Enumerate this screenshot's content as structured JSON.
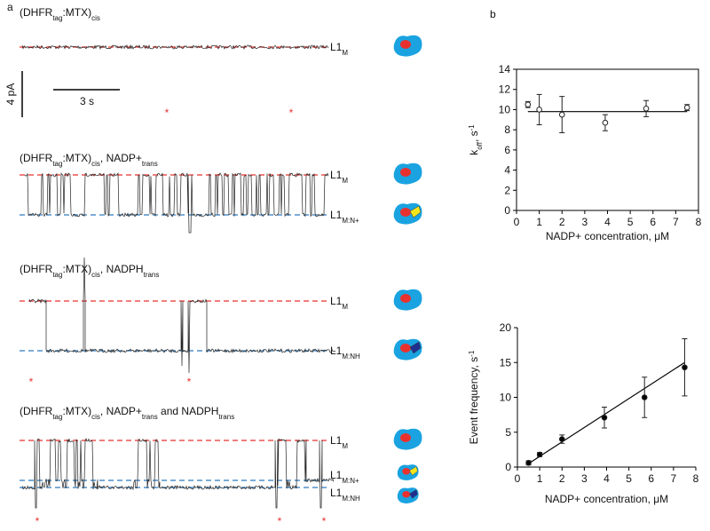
{
  "panel_a": {
    "label": "a",
    "scale_bar": {
      "current": "4 pA",
      "time": "3 s"
    },
    "event_marker": "*",
    "traces": [
      {
        "title": [
          {
            "text": "(DHFR"
          },
          {
            "text": "tag",
            "sub": true
          },
          {
            "text": ":MTX)"
          },
          {
            "text": "cis",
            "sub": true
          }
        ],
        "levels": [
          {
            "name": "L1",
            "sub": "M",
            "color": "#e8312f"
          }
        ]
      },
      {
        "title": [
          {
            "text": "(DHFR"
          },
          {
            "text": "tag",
            "sub": true
          },
          {
            "text": ":MTX)"
          },
          {
            "text": "cis",
            "sub": true
          },
          {
            "text": ", NADP+"
          },
          {
            "text": "trans",
            "sub": true
          }
        ],
        "levels": [
          {
            "name": "L1",
            "sub": "M",
            "color": "#e8312f"
          },
          {
            "name": "L1",
            "sub": "M:N+",
            "color": "#2e7bbf"
          }
        ]
      },
      {
        "title": [
          {
            "text": "(DHFR"
          },
          {
            "text": "tag",
            "sub": true
          },
          {
            "text": ":MTX)"
          },
          {
            "text": "cis",
            "sub": true
          },
          {
            "text": ", NADPH"
          },
          {
            "text": "trans",
            "sub": true
          }
        ],
        "levels": [
          {
            "name": "L1",
            "sub": "M",
            "color": "#e8312f"
          },
          {
            "name": "L1",
            "sub": "M:NH",
            "color": "#2e7bbf"
          }
        ]
      },
      {
        "title": [
          {
            "text": "(DHFR"
          },
          {
            "text": "tag",
            "sub": true
          },
          {
            "text": ":MTX)"
          },
          {
            "text": "cis",
            "sub": true
          },
          {
            "text": ",   NADP+"
          },
          {
            "text": "trans",
            "sub": true
          },
          {
            "text": " and NADPH"
          },
          {
            "text": "trans",
            "sub": true
          }
        ],
        "levels": [
          {
            "name": "L1",
            "sub": "M",
            "color": "#e8312f"
          },
          {
            "name": "L1",
            "sub": "M:N+",
            "color": "#2e7bbf"
          },
          {
            "name": "L1",
            "sub": "M:NH",
            "color": "#2e7bbf"
          }
        ]
      }
    ]
  },
  "panel_b_label": "b",
  "chart_data": [
    {
      "type": "scatter",
      "xlabel": "NADP+ concentration, μM",
      "ylabel": {
        "main": "k",
        "sub": "off",
        "rest": ", s",
        "sup": "-1"
      },
      "x": [
        0.5,
        1,
        2,
        3.9,
        5.7,
        7.5
      ],
      "values": [
        10.5,
        10,
        9.5,
        8.7,
        10.1,
        10.2
      ],
      "errors": [
        0.3,
        1.5,
        1.8,
        0.8,
        0.8,
        0.3
      ],
      "marker_fill": "white",
      "color": "#222222",
      "fit": {
        "x": [
          0.5,
          7.5
        ],
        "y": [
          9.8,
          9.8
        ]
      },
      "xlim": [
        0,
        8
      ],
      "xticks": [
        0,
        1,
        2,
        3,
        4,
        5,
        6,
        7,
        8
      ],
      "ylim": [
        0,
        14
      ],
      "yticks": [
        0,
        2,
        4,
        6,
        8,
        10,
        12,
        14
      ],
      "frame": "box"
    },
    {
      "type": "scatter",
      "xlabel": "NADP+ concentration, μM",
      "ylabel": {
        "main": "Event frequency, s",
        "sup": "-1"
      },
      "x": [
        0.5,
        1,
        2,
        3.9,
        5.7,
        7.5
      ],
      "values": [
        0.6,
        1.8,
        4,
        7.1,
        10,
        14.3
      ],
      "errors": [
        0.3,
        0.3,
        0.6,
        1.5,
        2.9,
        4.1
      ],
      "marker_fill": "black",
      "color": "#222222",
      "fit": {
        "x": [
          0.5,
          7.5
        ],
        "y": [
          0.5,
          15
        ]
      },
      "xlim": [
        0,
        8
      ],
      "xticks": [
        0,
        1,
        2,
        3,
        4,
        5,
        6,
        7,
        8
      ],
      "ylim": [
        0,
        20
      ],
      "yticks": [
        0,
        5,
        10,
        15,
        20
      ],
      "frame": "axes"
    }
  ]
}
